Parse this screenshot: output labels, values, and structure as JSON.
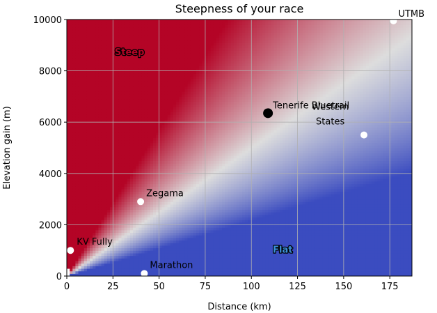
{
  "chart_data": {
    "type": "heatmap",
    "title": "Steepness of your race",
    "xlabel": "Distance (km)",
    "ylabel": "Elevation gain (m)",
    "xlim": [
      0,
      187
    ],
    "ylim": [
      0,
      10000
    ],
    "xticks": [
      0,
      25,
      50,
      75,
      100,
      125,
      150,
      175
    ],
    "yticks": [
      0,
      2000,
      4000,
      6000,
      8000,
      10000
    ],
    "grid": true,
    "colormap": "coolwarm",
    "colors": {
      "flat": "#3b4cc0",
      "neutral": "#dddddd",
      "steep": "#b40426"
    },
    "region_labels": [
      {
        "text": "Steep",
        "x": 34,
        "y": 8750,
        "color": "#b40426"
      },
      {
        "text": "Flat",
        "x": 117,
        "y": 1050,
        "color": "#3b8fd8"
      }
    ],
    "races": [
      {
        "name": "UTMB",
        "distance": 177,
        "elevation": 9950,
        "highlight": false,
        "label_dx": 7,
        "label_dy": -6
      },
      {
        "name": "Tenerife Bluetrail",
        "distance": 109,
        "elevation": 6350,
        "highlight": true,
        "label_dx": 7,
        "label_dy": -7
      },
      {
        "name": "Western\nStates",
        "distance": 161,
        "elevation": 5500,
        "highlight": false,
        "label_dx": -75,
        "label_dy": -36
      },
      {
        "name": "Zegama",
        "distance": 40,
        "elevation": 2900,
        "highlight": false,
        "label_dx": 8,
        "label_dy": -8
      },
      {
        "name": "KV Fully",
        "distance": 2,
        "elevation": 1000,
        "highlight": false,
        "label_dx": 9,
        "label_dy": -8
      },
      {
        "name": "Marathon",
        "distance": 42,
        "elevation": 100,
        "highlight": false,
        "label_dx": 8,
        "label_dy": -8
      }
    ]
  }
}
